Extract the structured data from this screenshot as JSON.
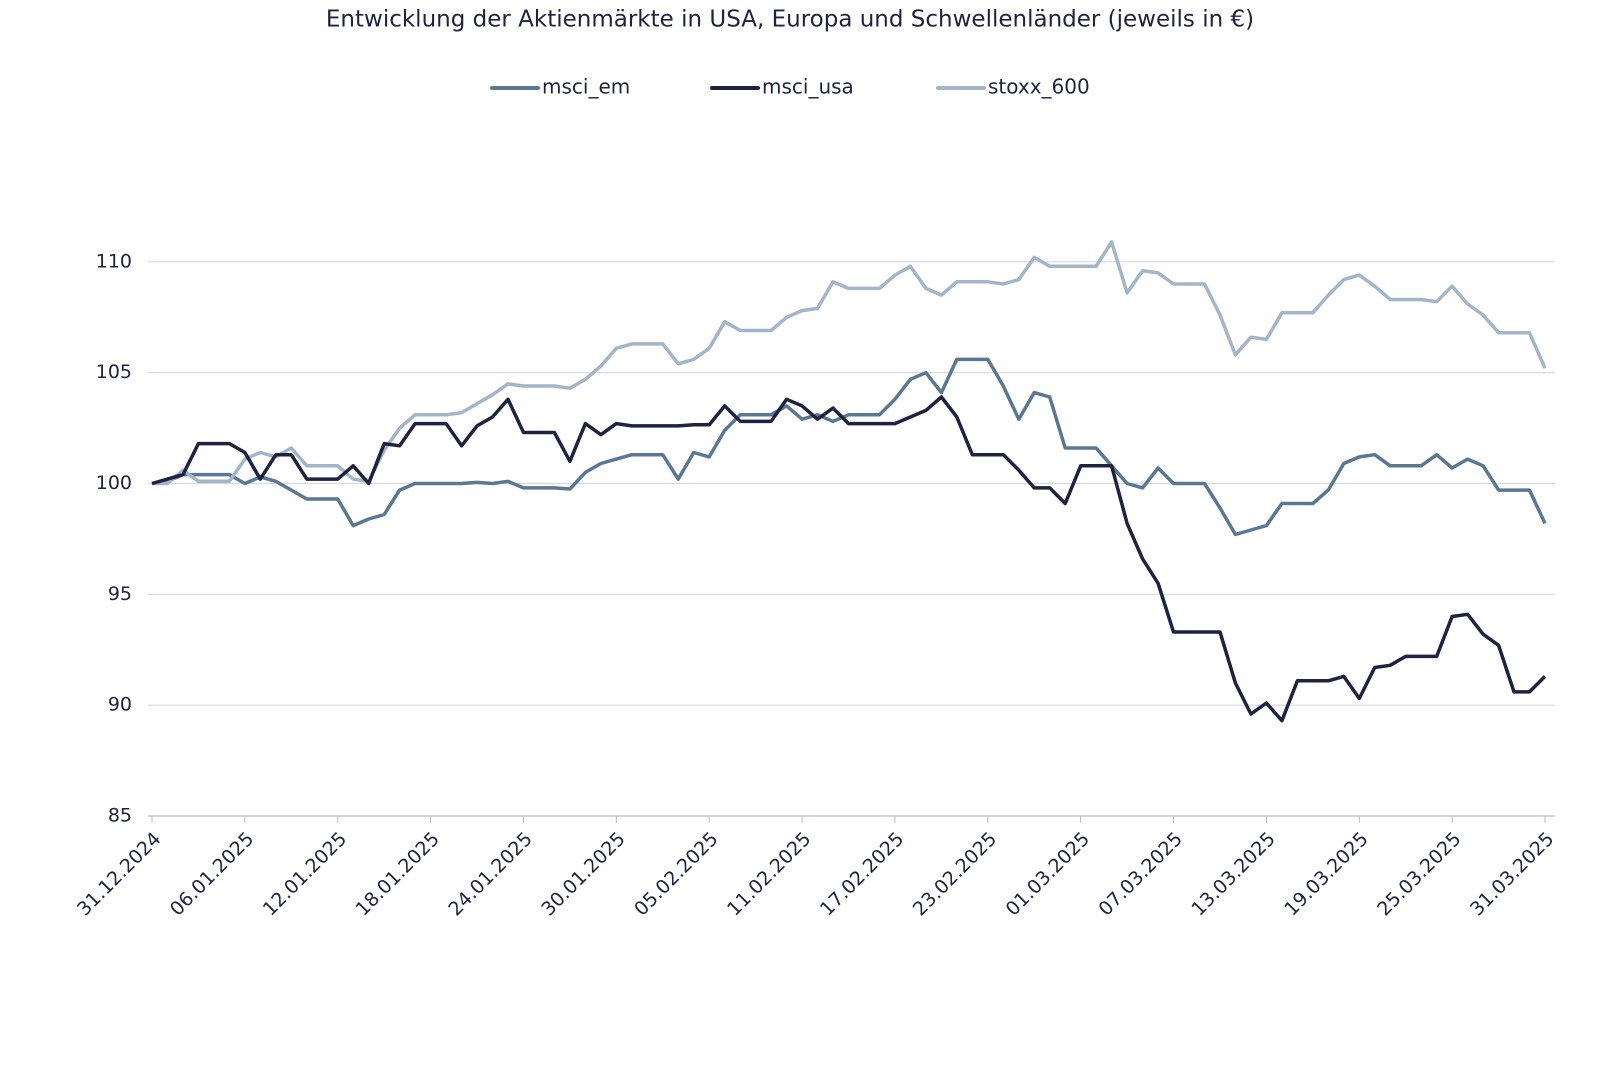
{
  "chart_data": {
    "type": "line",
    "title": "Entwicklung der Aktienmärkte in USA, Europa und Schwellenländer (jeweils in €)",
    "categories": [
      "31.12.2024",
      null,
      null,
      null,
      null,
      null,
      "06.01.2025",
      null,
      null,
      null,
      null,
      null,
      "12.01.2025",
      null,
      null,
      null,
      null,
      null,
      "18.01.2025",
      null,
      null,
      null,
      null,
      null,
      "24.01.2025",
      null,
      null,
      null,
      null,
      null,
      "30.01.2025",
      null,
      null,
      null,
      null,
      null,
      "05.02.2025",
      null,
      null,
      null,
      null,
      null,
      "11.02.2025",
      null,
      null,
      null,
      null,
      null,
      "17.02.2025",
      null,
      null,
      null,
      null,
      null,
      "23.02.2025",
      null,
      null,
      null,
      null,
      null,
      "01.03.2025",
      null,
      null,
      null,
      null,
      null,
      "07.03.2025",
      null,
      null,
      null,
      null,
      null,
      "13.03.2025",
      null,
      null,
      null,
      null,
      null,
      "19.03.2025",
      null,
      null,
      null,
      null,
      null,
      "25.03.2025",
      null,
      null,
      null,
      null,
      null,
      "31.03.2025"
    ],
    "series": [
      {
        "name": "msci_em",
        "color": "#5a7894",
        "values": [
          100,
          100.1,
          100.4,
          100.4,
          100.4,
          100.4,
          100.0,
          100.3,
          100.1,
          99.7,
          99.3,
          99.3,
          99.3,
          98.1,
          98.4,
          98.6,
          99.7,
          100.0,
          100.0,
          100.0,
          100.0,
          100.05,
          100.0,
          100.1,
          99.8,
          99.8,
          99.8,
          99.75,
          100.5,
          100.9,
          101.1,
          101.3,
          101.3,
          101.3,
          100.2,
          101.4,
          101.2,
          102.4,
          103.1,
          103.1,
          103.1,
          103.5,
          102.9,
          103.1,
          102.8,
          103.1,
          103.1,
          103.1,
          103.8,
          104.7,
          105.0,
          104.1,
          105.6,
          105.6,
          105.6,
          104.4,
          102.9,
          104.1,
          103.9,
          101.6,
          101.6,
          101.6,
          100.8,
          100.0,
          99.8,
          100.7,
          100.0,
          100.0,
          100.0,
          98.9,
          97.7,
          97.9,
          98.1,
          99.1,
          99.1,
          99.1,
          99.7,
          100.9,
          101.2,
          101.3,
          100.8,
          100.8,
          100.8,
          101.3,
          100.7,
          101.1,
          100.8,
          99.7,
          99.7,
          99.7,
          98.2
        ]
      },
      {
        "name": "msci_usa",
        "color": "#1f2240",
        "values": [
          100,
          100.2,
          100.4,
          101.8,
          101.8,
          101.8,
          101.4,
          100.2,
          101.3,
          101.3,
          100.2,
          100.2,
          100.2,
          100.8,
          100.0,
          101.8,
          101.7,
          102.7,
          102.7,
          102.7,
          101.7,
          102.6,
          103.0,
          103.8,
          102.3,
          102.3,
          102.3,
          101.0,
          102.7,
          102.2,
          102.7,
          102.6,
          102.6,
          102.6,
          102.6,
          102.65,
          102.65,
          103.5,
          102.8,
          102.8,
          102.8,
          103.8,
          103.5,
          102.9,
          103.4,
          102.7,
          102.7,
          102.7,
          102.7,
          103.0,
          103.3,
          103.9,
          103.0,
          101.3,
          101.3,
          101.3,
          100.6,
          99.8,
          99.8,
          99.1,
          100.8,
          100.8,
          100.8,
          98.2,
          96.6,
          95.5,
          93.3,
          93.3,
          93.3,
          93.3,
          91.0,
          89.6,
          90.1,
          89.3,
          91.1,
          91.1,
          91.1,
          91.3,
          90.3,
          91.7,
          91.8,
          92.2,
          92.2,
          92.2,
          94.0,
          94.1,
          93.2,
          92.7,
          90.6,
          90.6,
          91.3
        ]
      },
      {
        "name": "stoxx_600",
        "color": "#a3b5c8",
        "values": [
          100,
          100,
          100.6,
          100.1,
          100.1,
          100.1,
          101.1,
          101.4,
          101.2,
          101.6,
          100.8,
          100.8,
          100.8,
          100.2,
          100.1,
          101.5,
          102.5,
          103.1,
          103.1,
          103.1,
          103.2,
          103.6,
          104.0,
          104.5,
          104.4,
          104.4,
          104.4,
          104.3,
          104.7,
          105.3,
          106.1,
          106.3,
          106.3,
          106.3,
          105.4,
          105.6,
          106.1,
          107.3,
          106.9,
          106.9,
          106.9,
          107.5,
          107.8,
          107.9,
          109.1,
          108.8,
          108.8,
          108.8,
          109.4,
          109.8,
          108.8,
          108.5,
          109.1,
          109.1,
          109.1,
          109.0,
          109.2,
          110.2,
          109.8,
          109.8,
          109.8,
          109.8,
          110.9,
          108.6,
          109.6,
          109.5,
          109.0,
          109.0,
          109.0,
          107.6,
          105.8,
          106.6,
          106.5,
          107.7,
          107.7,
          107.7,
          108.5,
          109.2,
          109.4,
          108.9,
          108.3,
          108.3,
          108.3,
          108.2,
          108.9,
          108.1,
          107.6,
          106.8,
          106.8,
          106.8,
          105.2
        ]
      }
    ],
    "ylim": [
      85,
      115
    ],
    "yticks": [
      85,
      90,
      95,
      100,
      105,
      110
    ],
    "grid": true
  }
}
